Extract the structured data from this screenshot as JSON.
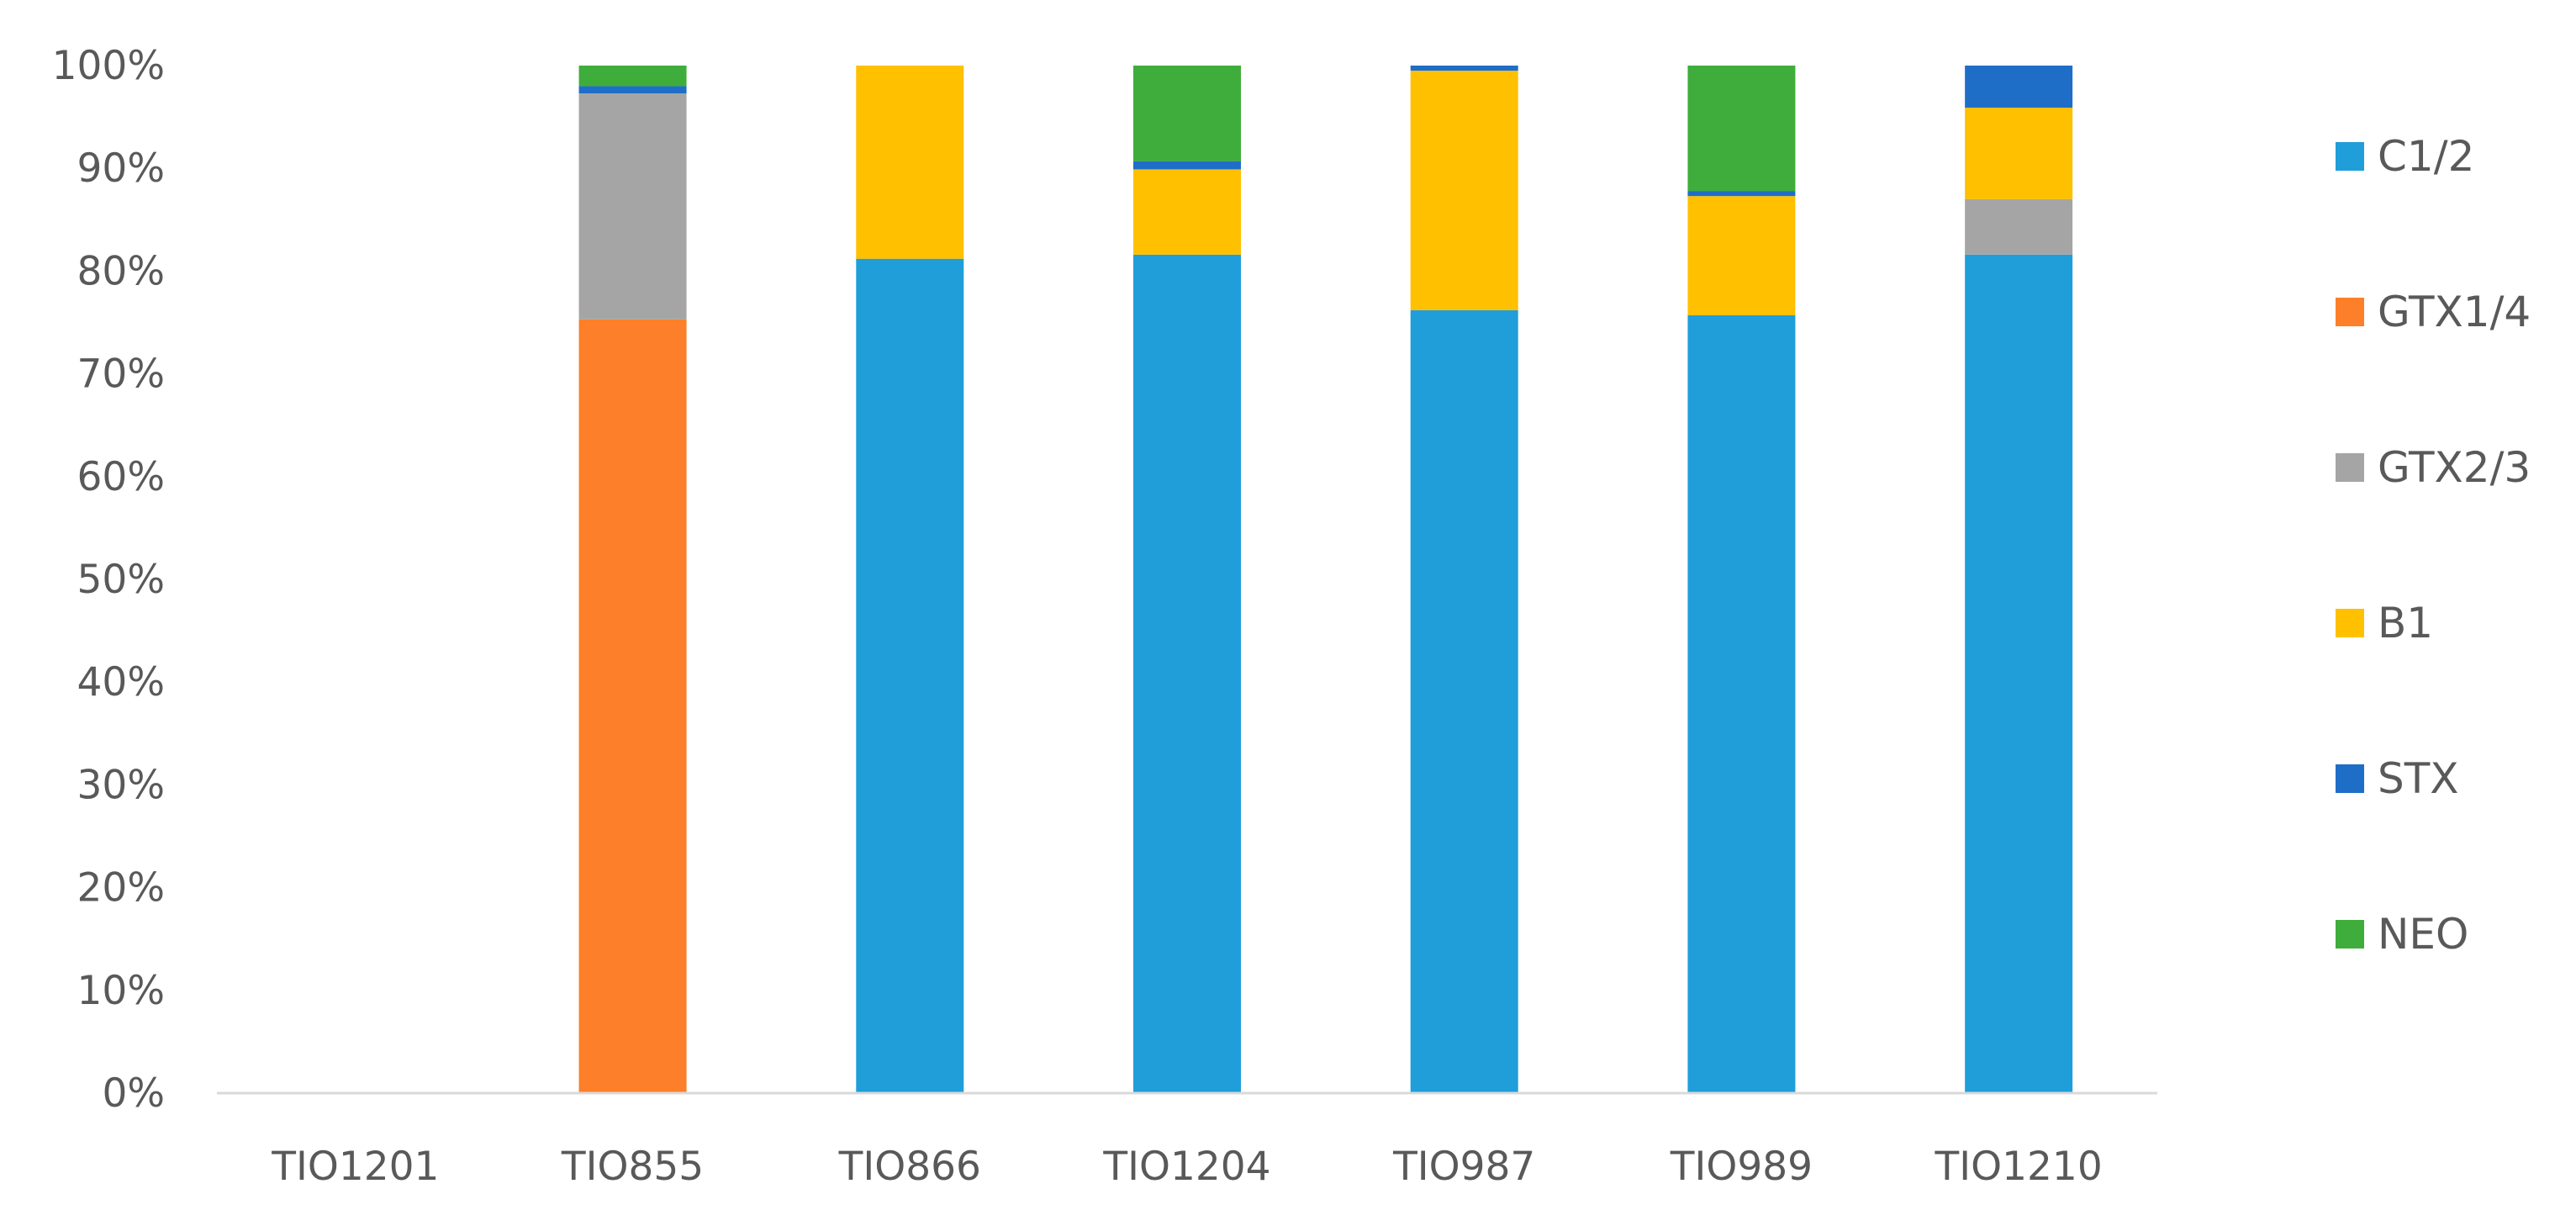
{
  "chart_data": {
    "type": "bar",
    "stacked": true,
    "percent_stacked": true,
    "title": "",
    "xlabel": "",
    "ylabel": "",
    "ylim": [
      0,
      100
    ],
    "y_ticks": [
      "0%",
      "10%",
      "20%",
      "30%",
      "40%",
      "50%",
      "60%",
      "70%",
      "80%",
      "90%",
      "100%"
    ],
    "categories": [
      "TIO1201",
      "TIO855",
      "TIO866",
      "TIO1204",
      "TIO987",
      "TIO989",
      "TIO1210"
    ],
    "series": [
      {
        "name": "C1/2",
        "color": "#1f9ed9",
        "values": [
          0,
          0,
          81.2,
          81.6,
          76.2,
          75.7,
          81.6
        ]
      },
      {
        "name": "GTX1/4",
        "color": "#fd7f29",
        "values": [
          0,
          75.3,
          0,
          0,
          0,
          0,
          0
        ]
      },
      {
        "name": "GTX2/3",
        "color": "#a5a5a5",
        "values": [
          0,
          22.0,
          0,
          0,
          0,
          0,
          5.4
        ]
      },
      {
        "name": "B1",
        "color": "#ffc000",
        "values": [
          0,
          0,
          18.8,
          8.3,
          23.3,
          11.6,
          8.9
        ]
      },
      {
        "name": "STX",
        "color": "#1e6ec8",
        "values": [
          0,
          0.7,
          0,
          0.8,
          0.5,
          0.5,
          4.1
        ]
      },
      {
        "name": "NEO",
        "color": "#3fad3b",
        "values": [
          0,
          2.0,
          0,
          9.3,
          0,
          12.2,
          0
        ]
      }
    ],
    "legend_position": "right",
    "grid": false
  }
}
